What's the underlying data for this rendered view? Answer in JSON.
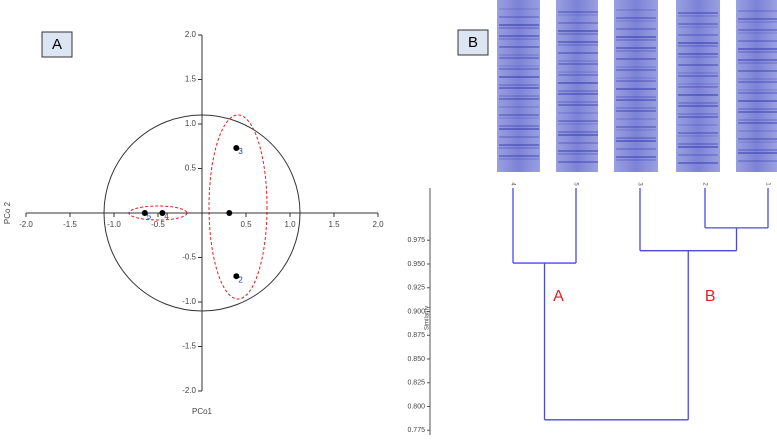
{
  "chart_data": [
    {
      "type": "scatter",
      "panel": "A",
      "xlabel": "PCo1",
      "ylabel": "PCo 2",
      "xlim": [
        -2,
        2
      ],
      "ylim": [
        -2,
        2
      ],
      "xticks": [
        {
          "value": -2,
          "label": "-2.0"
        },
        {
          "value": -1.5,
          "label": "-1.5"
        },
        {
          "value": -1,
          "label": "-1.0"
        },
        {
          "value": -0.5,
          "label": "-0.5"
        },
        {
          "value": 0.5,
          "label": "0.5"
        },
        {
          "value": 1,
          "label": "1.0"
        },
        {
          "value": 1.5,
          "label": "1.5"
        },
        {
          "value": 2,
          "label": "2.0"
        }
      ],
      "yticks": [
        {
          "value": -2,
          "label": "-2.0"
        },
        {
          "value": -1.5,
          "label": "-1.5"
        },
        {
          "value": -1,
          "label": "-1.0"
        },
        {
          "value": -0.5,
          "label": "-0.5"
        },
        {
          "value": 0.5,
          "label": "0.5"
        },
        {
          "value": 1,
          "label": "1.0"
        },
        {
          "value": 1.5,
          "label": "1.5"
        },
        {
          "value": 2,
          "label": "2.0"
        }
      ],
      "x": [
        -0.65,
        -0.45,
        0.31,
        0.39,
        0.39
      ],
      "y": [
        0,
        0,
        0,
        0.73,
        -0.71
      ],
      "labels": [
        "5",
        "4",
        null,
        "3",
        "2"
      ],
      "color": "#000000",
      "label_color": "#2233cc"
    },
    {
      "type": "dendrogram",
      "panel": "B",
      "ylabel": "Similarity",
      "ylim": [
        0.77,
        1.03
      ],
      "yticks": [
        {
          "value": 0.775,
          "label": "0.775"
        },
        {
          "value": 0.8,
          "label": "0.800"
        },
        0.825,
        {
          "value": 0.85,
          "label": "0.850"
        },
        0.875,
        {
          "value": 0.9,
          "label": "0.900"
        },
        0.925,
        {
          "value": 0.95,
          "label": "0.950"
        },
        0.975
      ],
      "leaves": [
        "4",
        "5",
        "3",
        "2",
        "1"
      ],
      "merges": [
        {
          "join": [
            3,
            4
          ],
          "height": 0.988
        },
        {
          "join": [
            2,
            5
          ],
          "height": 0.964
        },
        {
          "join": [
            0,
            1
          ],
          "height": 0.951
        },
        {
          "join": [
            6,
            7
          ],
          "height": 0.786
        }
      ],
      "clusters": [
        "B",
        "A"
      ],
      "color": "#4a4ae0",
      "cluster_color": "#dd2222"
    }
  ]
}
